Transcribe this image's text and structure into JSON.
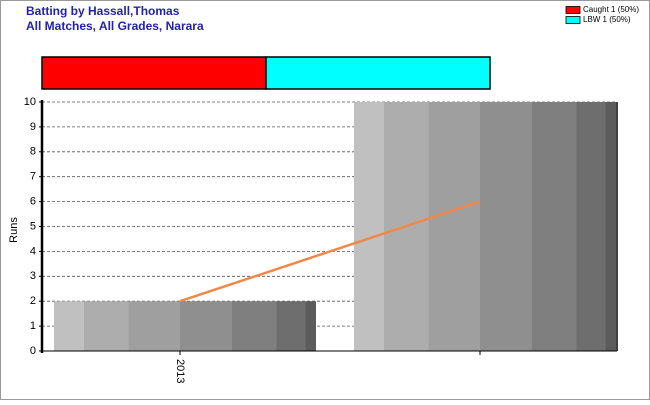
{
  "chart_data": {
    "type": "bar",
    "title": "Batting by Hassall,Thomas",
    "subtitle": "All Matches, All Grades, Narara",
    "dismissals": [
      {
        "name": "Caught 1 (50%)",
        "color": "#ff0000",
        "value": 1
      },
      {
        "name": "LBW 1 (50%)",
        "color": "#00ffff",
        "value": 1
      }
    ],
    "categories": [
      "2013",
      null
    ],
    "values": [
      2,
      10
    ],
    "trend": {
      "color": "#f0884a",
      "values": [
        2,
        6
      ]
    },
    "ylabel": "Runs",
    "ylim": [
      0,
      10
    ],
    "yticks": [
      0,
      1,
      2,
      3,
      4,
      5,
      6,
      7,
      8,
      9,
      10
    ],
    "grid": true
  }
}
